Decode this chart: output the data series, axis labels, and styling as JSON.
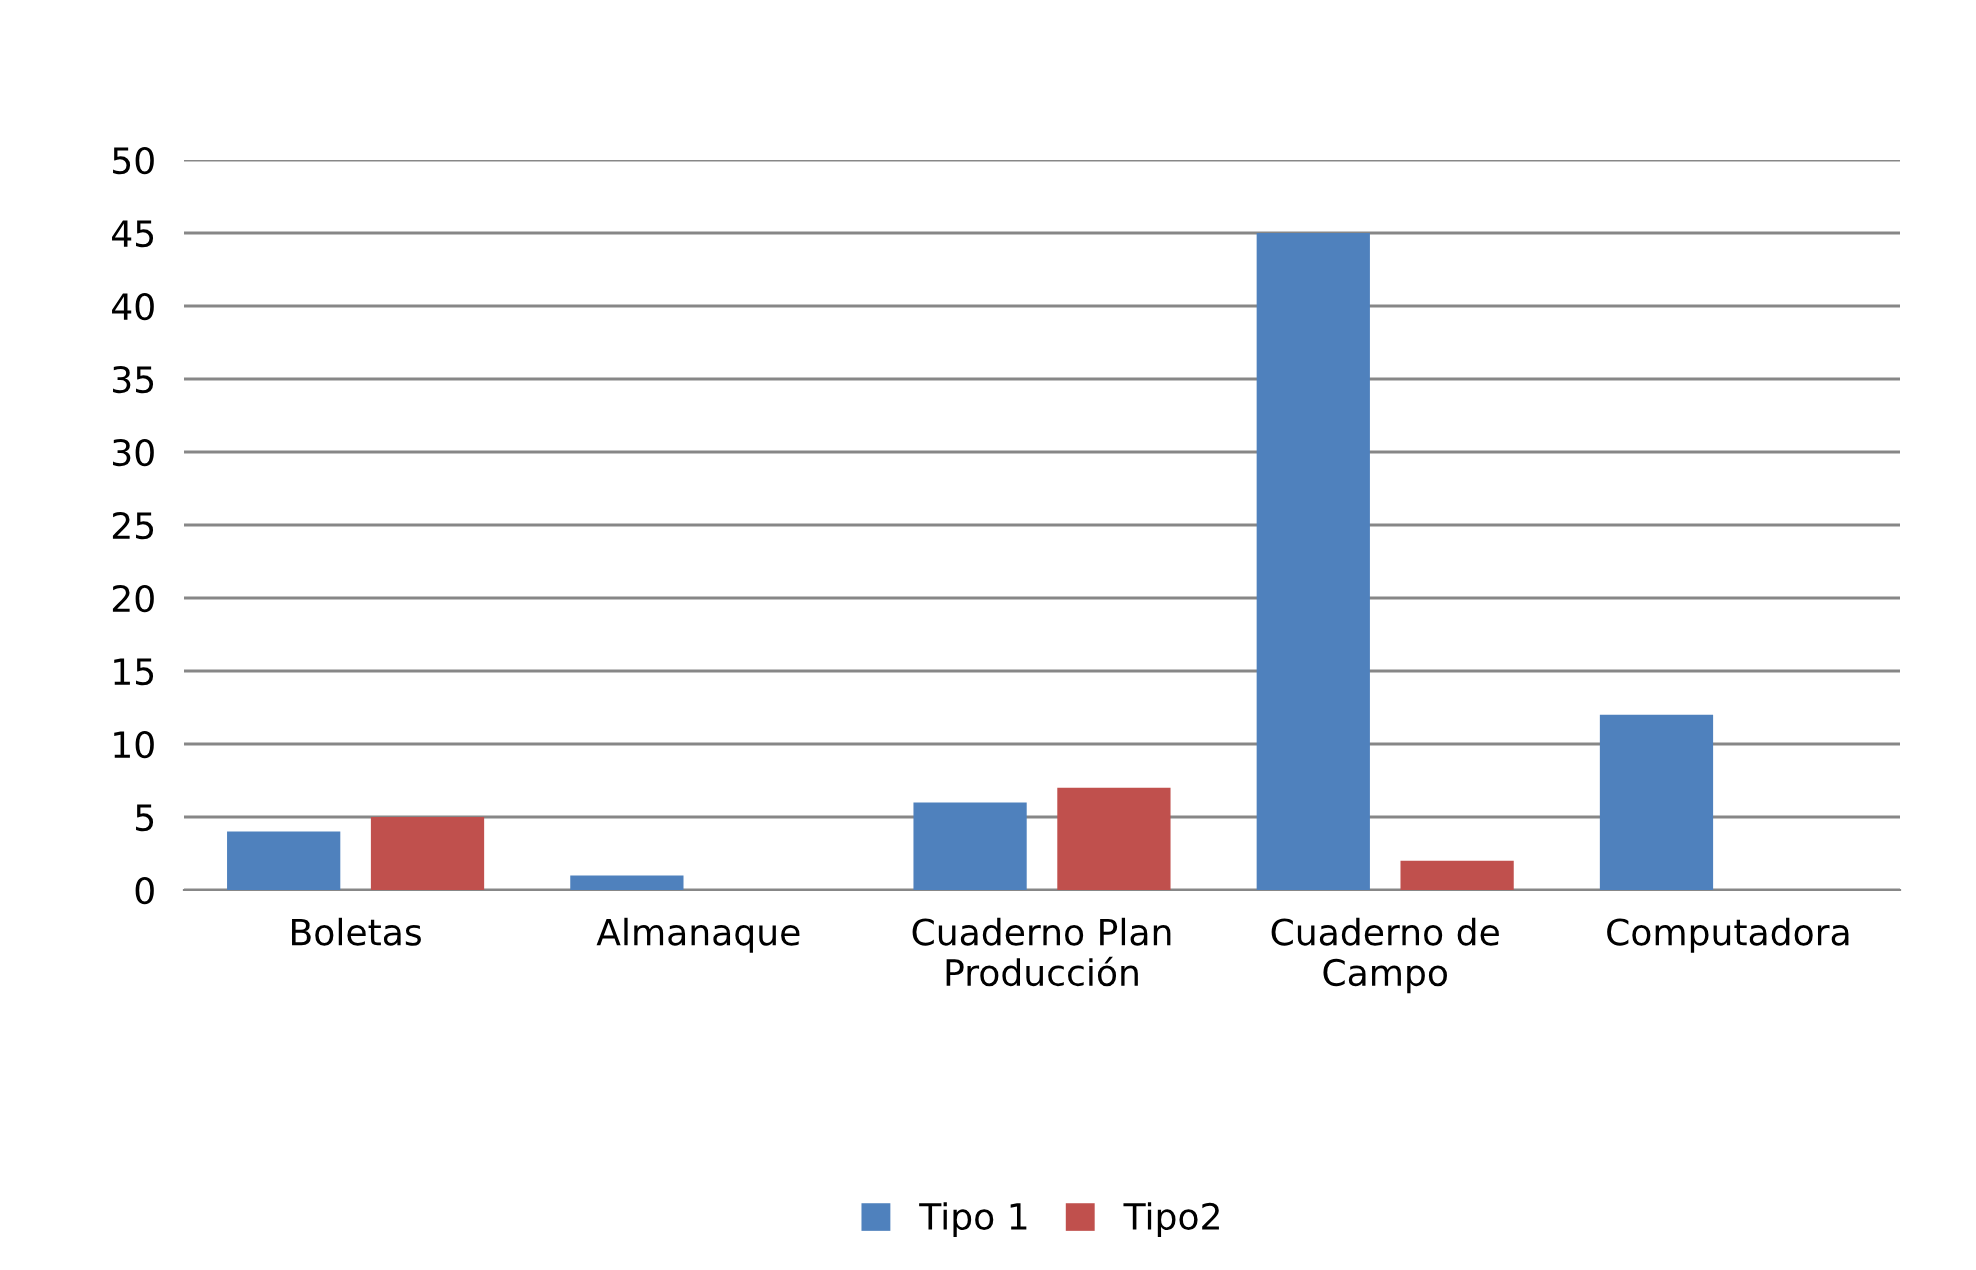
{
  "chart_data": {
    "type": "bar",
    "categories": [
      "Boletas",
      "Almanaque",
      "Cuaderno Plan\nProducción",
      "Cuaderno de\nCampo",
      "Computadora"
    ],
    "series": [
      {
        "name": "Tipo 1",
        "color": "#4f81bd",
        "values": [
          4,
          1,
          6,
          45,
          12
        ]
      },
      {
        "name": "Tipo2",
        "color": "#c0504d",
        "values": [
          5,
          0,
          7,
          2,
          0
        ]
      }
    ],
    "ylim": [
      0,
      50
    ],
    "yticks": [
      0,
      5,
      10,
      15,
      20,
      25,
      30,
      35,
      40,
      45,
      50
    ],
    "grid": "y",
    "legend": "bottom"
  }
}
